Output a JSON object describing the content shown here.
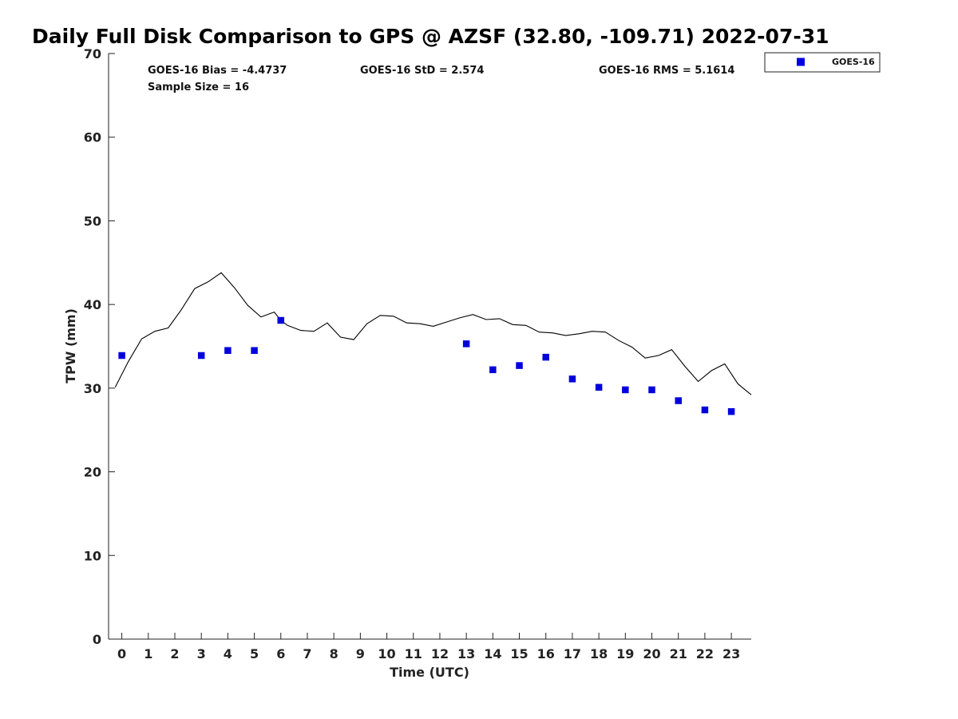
{
  "chart_data": {
    "type": "scatter",
    "title": "Daily Full Disk Comparison to GPS @ AZSF (32.80, -109.71) 2022-07-31",
    "xlabel": "Time (UTC)",
    "ylabel": "TPW (mm)",
    "xlim": [
      -0.5,
      23.75
    ],
    "ylim": [
      0,
      70
    ],
    "x_ticks": [
      0,
      1,
      2,
      3,
      4,
      5,
      6,
      7,
      8,
      9,
      10,
      11,
      12,
      13,
      14,
      15,
      16,
      17,
      18,
      19,
      20,
      21,
      22,
      23
    ],
    "y_ticks": [
      0,
      10,
      20,
      30,
      40,
      50,
      60,
      70
    ],
    "grid": false,
    "legend_position": "outside top-right",
    "stats": {
      "bias": "GOES-16 Bias = -4.4737",
      "std": "GOES-16 StD = 2.574",
      "rms": "GOES-16 RMS = 5.1614",
      "sample_size": "Sample Size = 16"
    },
    "series": [
      {
        "name": "GOES-16",
        "kind": "scatter",
        "color": "#0000dd",
        "x": [
          0,
          3,
          4,
          5,
          6,
          13,
          14,
          15,
          16,
          17,
          18,
          19,
          20,
          21,
          22,
          23
        ],
        "y": [
          33.9,
          33.9,
          34.5,
          34.5,
          38.1,
          35.3,
          32.2,
          32.7,
          33.7,
          31.1,
          30.1,
          29.8,
          29.8,
          28.5,
          27.4,
          27.2
        ]
      },
      {
        "kind": "line",
        "color": "#000000",
        "x": [
          -0.25,
          0.25,
          0.75,
          1.25,
          1.75,
          2.25,
          2.75,
          3.25,
          3.75,
          4.25,
          4.75,
          5.25,
          5.75,
          6.0,
          6.25,
          6.75,
          7.25,
          7.75,
          8.25,
          8.75,
          9.25,
          9.75,
          10.25,
          10.75,
          11.25,
          11.75,
          12.25,
          12.75,
          13.25,
          13.75,
          14.25,
          14.75,
          15.25,
          15.75,
          16.25,
          16.75,
          17.25,
          17.75,
          18.25,
          18.75,
          19.25,
          19.75,
          20.25,
          20.75,
          21.25,
          21.75,
          22.25,
          22.75,
          23.25,
          23.75
        ],
        "y": [
          30.1,
          33.2,
          35.9,
          36.8,
          37.2,
          39.4,
          41.9,
          42.7,
          43.8,
          42.0,
          39.9,
          38.5,
          39.1,
          38.1,
          37.5,
          36.9,
          36.8,
          37.8,
          36.1,
          35.8,
          37.7,
          38.7,
          38.6,
          37.8,
          37.7,
          37.4,
          37.9,
          38.4,
          38.8,
          38.2,
          38.3,
          37.6,
          37.5,
          36.7,
          36.6,
          36.3,
          36.5,
          36.8,
          36.7,
          35.7,
          34.9,
          33.6,
          33.9,
          34.6,
          32.6,
          30.8,
          32.1,
          32.9,
          30.5,
          29.2
        ]
      }
    ]
  }
}
